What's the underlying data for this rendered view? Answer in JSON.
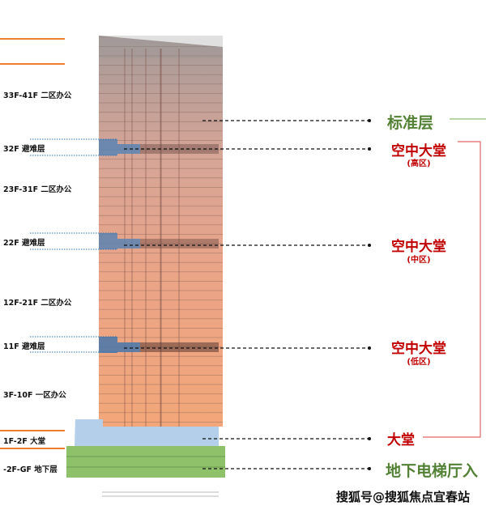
{
  "floor_labels": [
    {
      "text": "33F-41F 二区办公"
    },
    {
      "text": "32F 避难层"
    },
    {
      "text": "23F-31F 二区办公"
    },
    {
      "text": "22F 避难层"
    },
    {
      "text": "12F-21F 二区办公"
    },
    {
      "text": "11F 避难层"
    },
    {
      "text": "3F-10F 一区办公"
    },
    {
      "text": "1F-2F 大堂"
    },
    {
      "text": "-2F-GF 地下层"
    }
  ],
  "callouts": {
    "standard_floor": "标准层",
    "sky_lobby_high": "空中大堂",
    "sky_lobby_high_sub": "(高区)",
    "sky_lobby_mid": "空中大堂",
    "sky_lobby_mid_sub": "(中区)",
    "sky_lobby_low": "空中大堂",
    "sky_lobby_low_sub": "(低区)",
    "lobby": "大堂",
    "basement_elevator_hall": "地下电梯厅入"
  },
  "watermark": "搜狐号@搜狐焦点宜春站",
  "colors": {
    "office_top": "#a59a98",
    "office_mid": "#dfa592",
    "office_low": "#f0a57c",
    "refuge": "#5b84b1",
    "lobby": "#b4cfe9",
    "basement": "#8fc06a",
    "accent_red": "#c00000",
    "accent_green": "#538135",
    "accent_orange": "#ed7d31"
  }
}
